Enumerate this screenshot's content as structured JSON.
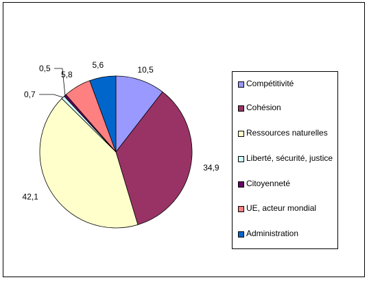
{
  "chart_data": {
    "type": "pie",
    "title": "",
    "legend_position": "right",
    "slices": [
      {
        "label": "Compétitivité",
        "value": 10.5,
        "value_label": "10,5",
        "color": "#9999ff"
      },
      {
        "label": "Cohésion",
        "value": 34.9,
        "value_label": "34,9",
        "color": "#993366"
      },
      {
        "label": "Ressources naturelles",
        "value": 42.1,
        "value_label": "42,1",
        "color": "#ffffcc"
      },
      {
        "label": "Liberté, sécurité, justice",
        "value": 0.7,
        "value_label": "0,7",
        "color": "#ccffff"
      },
      {
        "label": "Citoyenneté",
        "value": 0.5,
        "value_label": "0,5",
        "color": "#660066"
      },
      {
        "label": "UE, acteur mondial",
        "value": 5.8,
        "value_label": "5,8",
        "color": "#ff8080"
      },
      {
        "label": "Administration",
        "value": 5.6,
        "value_label": "5,6",
        "color": "#0066cc"
      }
    ]
  }
}
